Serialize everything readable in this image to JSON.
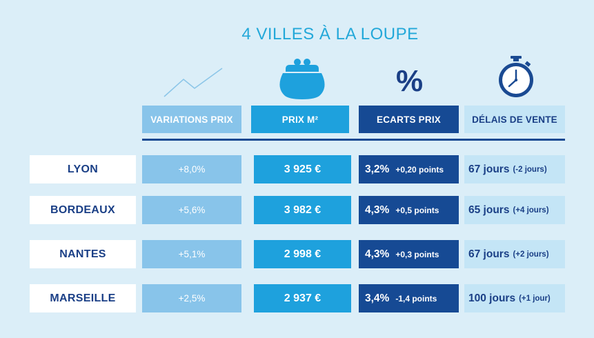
{
  "title": "4 VILLES À LA LOUPE",
  "colors": {
    "background": "#dbeef8",
    "title": "#23a8d9",
    "variations": "#88c4ea",
    "prix": "#1ea1dd",
    "ecarts": "#164a94",
    "delais": "#c4e5f6",
    "navy_text": "#1a3f86"
  },
  "icons": {
    "variations": "trend-line-icon",
    "prix": "purse-icon",
    "ecarts": "percent-icon",
    "delais": "stopwatch-icon"
  },
  "percent_symbol": "%",
  "headers": {
    "variations": "VARIATIONS PRIX",
    "prix": "PRIX M²",
    "ecarts": "ECARTS PRIX",
    "delais": "DÉLAIS DE VENTE"
  },
  "rows": [
    {
      "city": "LYON",
      "variation": "+8,0%",
      "prix": "3 925 €",
      "ecart": "3,2%",
      "ecart_change": "+0,20 points",
      "delai": "67 jours",
      "delai_change": "(-2 jours)"
    },
    {
      "city": "BORDEAUX",
      "variation": "+5,6%",
      "prix": "3 982 €",
      "ecart": "4,3%",
      "ecart_change": "+0,5 points",
      "delai": "65 jours",
      "delai_change": "(+4 jours)"
    },
    {
      "city": "NANTES",
      "variation": "+5,1%",
      "prix": "2 998 €",
      "ecart": "4,3%",
      "ecart_change": "+0,3 points",
      "delai": "67 jours",
      "delai_change": "(+2 jours)"
    },
    {
      "city": "MARSEILLE",
      "variation": "+2,5%",
      "prix": "2 937 €",
      "ecart": "3,4%",
      "ecart_change": "-1,4 points",
      "delai": "100 jours",
      "delai_change": "(+1 jour)"
    }
  ]
}
